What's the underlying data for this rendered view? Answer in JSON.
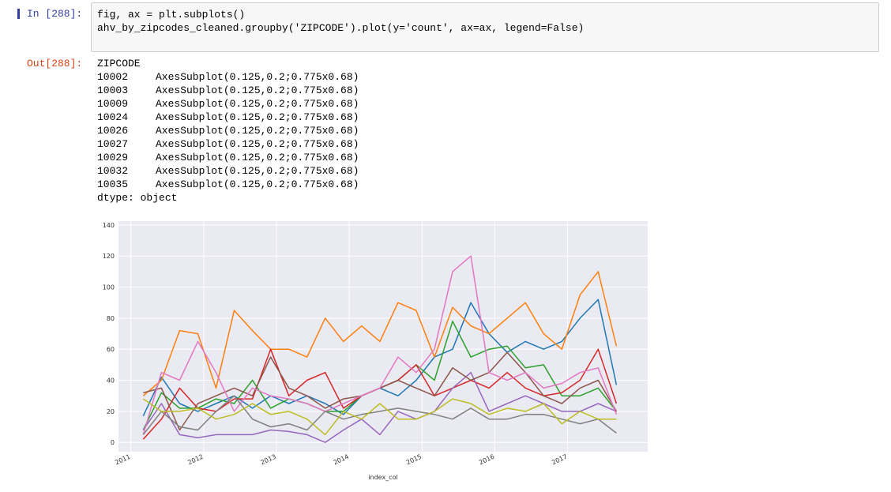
{
  "notebook": {
    "in_prompt": "In [288]:",
    "code": [
      "fig, ax = plt.subplots()",
      "ahv_by_zipcodes_cleaned.groupby('ZIPCODE').plot(y='count', ax=ax, legend=False)"
    ],
    "out_prompt": "Out[288]:",
    "output": {
      "header": "ZIPCODE",
      "rows": [
        [
          "10002",
          "AxesSubplot(0.125,0.2;0.775x0.68)"
        ],
        [
          "10003",
          "AxesSubplot(0.125,0.2;0.775x0.68)"
        ],
        [
          "10009",
          "AxesSubplot(0.125,0.2;0.775x0.68)"
        ],
        [
          "10024",
          "AxesSubplot(0.125,0.2;0.775x0.68)"
        ],
        [
          "10026",
          "AxesSubplot(0.125,0.2;0.775x0.68)"
        ],
        [
          "10027",
          "AxesSubplot(0.125,0.2;0.775x0.68)"
        ],
        [
          "10029",
          "AxesSubplot(0.125,0.2;0.775x0.68)"
        ],
        [
          "10032",
          "AxesSubplot(0.125,0.2;0.775x0.68)"
        ],
        [
          "10035",
          "AxesSubplot(0.125,0.2;0.775x0.68)"
        ]
      ],
      "footer": "dtype: object"
    }
  },
  "chart_data": {
    "type": "line",
    "x_label": "index_col",
    "x": [
      2011.17,
      2011.42,
      2011.67,
      2011.92,
      2012.17,
      2012.42,
      2012.67,
      2012.92,
      2013.17,
      2013.42,
      2013.67,
      2013.92,
      2014.17,
      2014.42,
      2014.67,
      2014.92,
      2015.17,
      2015.42,
      2015.67,
      2015.92,
      2016.17,
      2016.42,
      2016.67,
      2016.92,
      2017.17,
      2017.42,
      2017.67
    ],
    "series": [
      {
        "color": "#1f77b4",
        "values": [
          17,
          42,
          25,
          20,
          25,
          30,
          22,
          30,
          25,
          30,
          25,
          18,
          30,
          35,
          30,
          40,
          55,
          60,
          90,
          70,
          58,
          65,
          60,
          65,
          80,
          92,
          37
        ]
      },
      {
        "color": "#ff7f0e",
        "values": [
          30,
          40,
          72,
          70,
          35,
          85,
          72,
          60,
          60,
          55,
          80,
          65,
          75,
          65,
          90,
          85,
          55,
          87,
          75,
          70,
          80,
          90,
          70,
          60,
          95,
          110,
          62
        ]
      },
      {
        "color": "#2ca02c",
        "values": [
          8,
          32,
          22,
          22,
          28,
          25,
          40,
          22,
          28,
          25,
          20,
          20,
          30,
          35,
          40,
          50,
          40,
          78,
          55,
          60,
          62,
          48,
          50,
          30,
          30,
          35,
          20
        ]
      },
      {
        "color": "#d62728",
        "values": [
          2,
          15,
          35,
          22,
          20,
          28,
          28,
          60,
          30,
          40,
          45,
          22,
          30,
          35,
          40,
          50,
          30,
          35,
          40,
          35,
          45,
          35,
          30,
          32,
          40,
          60,
          25
        ]
      },
      {
        "color": "#9467bd",
        "values": [
          8,
          25,
          5,
          3,
          5,
          5,
          5,
          8,
          7,
          5,
          0,
          8,
          15,
          5,
          20,
          15,
          20,
          35,
          45,
          20,
          25,
          30,
          25,
          20,
          20,
          25,
          20
        ]
      },
      {
        "color": "#8c564b",
        "values": [
          32,
          35,
          8,
          25,
          30,
          35,
          30,
          55,
          35,
          30,
          22,
          28,
          30,
          35,
          40,
          35,
          30,
          48,
          40,
          45,
          58,
          45,
          30,
          25,
          35,
          40,
          20
        ]
      },
      {
        "color": "#e377c2",
        "values": [
          5,
          45,
          40,
          65,
          45,
          20,
          35,
          30,
          28,
          25,
          20,
          25,
          30,
          35,
          55,
          45,
          60,
          110,
          120,
          45,
          40,
          45,
          35,
          38,
          45,
          48,
          18
        ]
      },
      {
        "color": "#7f7f7f",
        "values": [
          5,
          20,
          10,
          8,
          20,
          30,
          15,
          10,
          12,
          8,
          20,
          15,
          18,
          20,
          22,
          20,
          18,
          15,
          22,
          15,
          15,
          18,
          18,
          15,
          12,
          15,
          6
        ]
      },
      {
        "color": "#bcbd22",
        "values": [
          28,
          20,
          20,
          22,
          15,
          18,
          25,
          18,
          20,
          15,
          5,
          20,
          15,
          25,
          15,
          15,
          20,
          28,
          25,
          18,
          22,
          20,
          25,
          12,
          20,
          15,
          15
        ]
      }
    ],
    "xlim": [
      2010.83,
      2018.1
    ],
    "ylim": [
      -6,
      142.5
    ],
    "xticks": [
      2011,
      2012,
      2013,
      2014,
      2015,
      2016,
      2017
    ],
    "yticks": [
      0,
      20,
      40,
      60,
      80,
      100,
      120,
      140
    ],
    "grid": true
  }
}
